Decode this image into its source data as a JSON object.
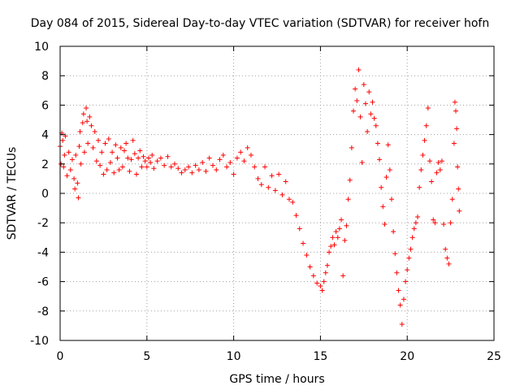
{
  "chart_data": {
    "type": "scatter",
    "title": "Day 084 of 2015, Sidereal Day-to-day VTEC variation (SDTVAR) for receiver hofn",
    "xlabel": "GPS time / hours",
    "ylabel": "SDTVAR / TECUs",
    "xlim": [
      0,
      25
    ],
    "ylim": [
      -10,
      10
    ],
    "xticks": [
      0,
      5,
      10,
      15,
      20,
      25
    ],
    "yticks": [
      -10,
      -8,
      -6,
      -4,
      -2,
      0,
      2,
      4,
      6,
      8,
      10
    ],
    "grid": true,
    "marker": "plus",
    "series": [
      {
        "name": "SDTVAR",
        "color": "#ff0000",
        "points": [
          [
            0.0,
            3.2
          ],
          [
            0.05,
            2.0
          ],
          [
            0.1,
            4.1
          ],
          [
            0.15,
            3.6
          ],
          [
            0.2,
            1.8
          ],
          [
            0.25,
            2.6
          ],
          [
            0.3,
            3.9
          ],
          [
            0.4,
            1.2
          ],
          [
            0.5,
            2.8
          ],
          [
            0.6,
            1.6
          ],
          [
            0.7,
            2.3
          ],
          [
            0.8,
            1.0
          ],
          [
            0.85,
            0.3
          ],
          [
            0.9,
            2.6
          ],
          [
            1.0,
            0.7
          ],
          [
            1.05,
            -0.3
          ],
          [
            1.1,
            3.2
          ],
          [
            1.15,
            4.2
          ],
          [
            1.2,
            2.0
          ],
          [
            1.3,
            4.8
          ],
          [
            1.35,
            5.4
          ],
          [
            1.4,
            2.8
          ],
          [
            1.5,
            5.8
          ],
          [
            1.55,
            4.9
          ],
          [
            1.6,
            3.4
          ],
          [
            1.7,
            5.2
          ],
          [
            1.8,
            4.6
          ],
          [
            1.9,
            3.1
          ],
          [
            2.0,
            4.2
          ],
          [
            2.1,
            2.2
          ],
          [
            2.2,
            3.6
          ],
          [
            2.3,
            1.9
          ],
          [
            2.4,
            2.8
          ],
          [
            2.5,
            1.3
          ],
          [
            2.6,
            3.4
          ],
          [
            2.7,
            1.6
          ],
          [
            2.8,
            3.7
          ],
          [
            2.9,
            2.1
          ],
          [
            3.0,
            2.8
          ],
          [
            3.1,
            1.4
          ],
          [
            3.2,
            3.3
          ],
          [
            3.3,
            2.4
          ],
          [
            3.4,
            1.6
          ],
          [
            3.5,
            3.1
          ],
          [
            3.6,
            1.8
          ],
          [
            3.7,
            2.9
          ],
          [
            3.8,
            3.4
          ],
          [
            3.9,
            2.4
          ],
          [
            4.0,
            1.5
          ],
          [
            4.1,
            2.3
          ],
          [
            4.2,
            3.6
          ],
          [
            4.3,
            2.7
          ],
          [
            4.4,
            1.3
          ],
          [
            4.5,
            2.4
          ],
          [
            4.6,
            2.9
          ],
          [
            4.7,
            1.8
          ],
          [
            4.8,
            2.5
          ],
          [
            4.9,
            2.2
          ],
          [
            5.0,
            1.8
          ],
          [
            5.1,
            2.4
          ],
          [
            5.2,
            2.1
          ],
          [
            5.3,
            2.6
          ],
          [
            5.4,
            1.7
          ],
          [
            5.6,
            2.2
          ],
          [
            5.8,
            2.4
          ],
          [
            6.0,
            1.9
          ],
          [
            6.2,
            2.5
          ],
          [
            6.4,
            1.8
          ],
          [
            6.6,
            2.0
          ],
          [
            6.8,
            1.7
          ],
          [
            7.0,
            1.4
          ],
          [
            7.2,
            1.6
          ],
          [
            7.4,
            1.8
          ],
          [
            7.6,
            1.4
          ],
          [
            7.8,
            1.9
          ],
          [
            8.0,
            1.6
          ],
          [
            8.2,
            2.1
          ],
          [
            8.4,
            1.5
          ],
          [
            8.6,
            2.4
          ],
          [
            8.8,
            1.9
          ],
          [
            9.0,
            1.6
          ],
          [
            9.2,
            2.3
          ],
          [
            9.4,
            2.6
          ],
          [
            9.6,
            1.8
          ],
          [
            9.8,
            2.1
          ],
          [
            10.0,
            1.3
          ],
          [
            10.2,
            2.4
          ],
          [
            10.4,
            2.8
          ],
          [
            10.6,
            2.2
          ],
          [
            10.8,
            3.1
          ],
          [
            11.0,
            2.6
          ],
          [
            11.2,
            1.8
          ],
          [
            11.4,
            1.0
          ],
          [
            11.6,
            0.6
          ],
          [
            11.8,
            1.8
          ],
          [
            12.0,
            0.4
          ],
          [
            12.2,
            1.2
          ],
          [
            12.4,
            0.2
          ],
          [
            12.6,
            1.3
          ],
          [
            12.8,
            -0.1
          ],
          [
            13.0,
            0.8
          ],
          [
            13.2,
            -0.4
          ],
          [
            13.4,
            -0.6
          ],
          [
            13.6,
            -1.5
          ],
          [
            13.8,
            -2.4
          ],
          [
            14.0,
            -3.4
          ],
          [
            14.2,
            -4.2
          ],
          [
            14.4,
            -5.0
          ],
          [
            14.6,
            -5.6
          ],
          [
            14.8,
            -6.1
          ],
          [
            15.0,
            -6.3
          ],
          [
            15.1,
            -6.6
          ],
          [
            15.2,
            -6.0
          ],
          [
            15.3,
            -5.4
          ],
          [
            15.4,
            -4.9
          ],
          [
            15.5,
            -4.0
          ],
          [
            15.6,
            -3.6
          ],
          [
            15.7,
            -3.0
          ],
          [
            15.8,
            -3.5
          ],
          [
            15.9,
            -2.6
          ],
          [
            16.0,
            -3.0
          ],
          [
            16.1,
            -2.4
          ],
          [
            16.2,
            -1.8
          ],
          [
            16.3,
            -5.6
          ],
          [
            16.4,
            -3.2
          ],
          [
            16.5,
            -2.2
          ],
          [
            16.6,
            -0.4
          ],
          [
            16.7,
            0.9
          ],
          [
            16.8,
            3.1
          ],
          [
            16.9,
            5.6
          ],
          [
            17.0,
            7.1
          ],
          [
            17.1,
            6.3
          ],
          [
            17.2,
            8.4
          ],
          [
            17.3,
            5.2
          ],
          [
            17.4,
            2.1
          ],
          [
            17.5,
            7.4
          ],
          [
            17.6,
            6.1
          ],
          [
            17.7,
            4.2
          ],
          [
            17.8,
            6.9
          ],
          [
            17.9,
            5.4
          ],
          [
            18.0,
            6.2
          ],
          [
            18.1,
            5.1
          ],
          [
            18.2,
            4.6
          ],
          [
            18.3,
            3.4
          ],
          [
            18.4,
            2.3
          ],
          [
            18.5,
            0.4
          ],
          [
            18.6,
            -0.9
          ],
          [
            18.7,
            -2.1
          ],
          [
            18.8,
            1.1
          ],
          [
            18.9,
            3.3
          ],
          [
            19.0,
            1.6
          ],
          [
            19.1,
            -0.4
          ],
          [
            19.2,
            -2.6
          ],
          [
            19.3,
            -4.1
          ],
          [
            19.4,
            -5.4
          ],
          [
            19.5,
            -6.6
          ],
          [
            19.6,
            -7.6
          ],
          [
            19.7,
            -8.9
          ],
          [
            19.8,
            -7.2
          ],
          [
            19.9,
            -6.0
          ],
          [
            20.0,
            -5.2
          ],
          [
            20.1,
            -4.4
          ],
          [
            20.2,
            -3.8
          ],
          [
            20.3,
            -3.0
          ],
          [
            20.4,
            -2.4
          ],
          [
            20.5,
            -2.0
          ],
          [
            20.6,
            -1.6
          ],
          [
            20.7,
            0.4
          ],
          [
            20.8,
            1.6
          ],
          [
            20.9,
            2.6
          ],
          [
            21.0,
            3.6
          ],
          [
            21.1,
            4.6
          ],
          [
            21.2,
            5.8
          ],
          [
            21.3,
            2.2
          ],
          [
            21.4,
            0.8
          ],
          [
            21.5,
            -1.8
          ],
          [
            21.6,
            -2.0
          ],
          [
            21.7,
            1.4
          ],
          [
            21.8,
            2.1
          ],
          [
            21.9,
            1.6
          ],
          [
            22.0,
            2.2
          ],
          [
            22.1,
            -2.1
          ],
          [
            22.2,
            -3.8
          ],
          [
            22.3,
            -4.4
          ],
          [
            22.4,
            -4.8
          ],
          [
            22.5,
            -2.0
          ],
          [
            22.6,
            -0.4
          ],
          [
            22.7,
            3.4
          ],
          [
            22.75,
            6.2
          ],
          [
            22.8,
            5.6
          ],
          [
            22.85,
            4.4
          ],
          [
            22.9,
            1.8
          ],
          [
            22.95,
            0.3
          ],
          [
            23.0,
            -1.2
          ]
        ]
      }
    ]
  }
}
